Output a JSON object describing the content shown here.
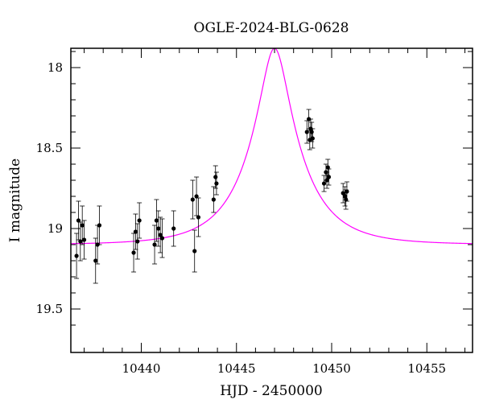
{
  "chart_data": {
    "type": "scatter",
    "title": "OGLE-2024-BLG-0628",
    "xlabel": "HJD - 2450000",
    "ylabel": "I magnitude",
    "xlim": [
      10436.3,
      10457.4
    ],
    "ylim": [
      19.77,
      17.88
    ],
    "y_inverted": true,
    "grid": false,
    "legend": "none",
    "x_ticks": [
      10440,
      10445,
      10450,
      10455
    ],
    "y_ticks": [
      18,
      18.5,
      19,
      19.5
    ],
    "x_tick_labels": [
      "10440",
      "10445",
      "10450",
      "10455"
    ],
    "y_tick_labels": [
      "18",
      "18.5",
      "19",
      "19.5"
    ],
    "colors": {
      "data": "#000000",
      "model": "#ff00ff",
      "axes": "#000000"
    },
    "series": [
      {
        "kind": "points_with_errorbars",
        "x": [
          10436.6,
          10436.7,
          10436.8,
          10436.9,
          10437.0,
          10437.6,
          10437.7,
          10437.8,
          10439.6,
          10439.7,
          10439.8,
          10439.9,
          10440.7,
          10440.8,
          10440.9,
          10441.0,
          10441.1,
          10441.7,
          10442.7,
          10442.8,
          10442.9,
          10443.0,
          10443.8,
          10443.9,
          10443.95,
          10448.7,
          10448.8,
          10448.85,
          10448.9,
          10448.95,
          10449.0,
          10449.6,
          10449.7,
          10449.75,
          10449.8,
          10449.85,
          10450.6,
          10450.7,
          10450.75,
          10450.8
        ],
        "y": [
          19.17,
          18.95,
          19.08,
          18.98,
          19.07,
          19.2,
          19.1,
          18.98,
          19.15,
          19.02,
          19.08,
          18.95,
          19.1,
          18.95,
          19.0,
          19.04,
          19.06,
          19.0,
          18.82,
          19.14,
          18.8,
          18.93,
          18.82,
          18.68,
          18.72,
          18.4,
          18.32,
          18.45,
          18.38,
          18.4,
          18.44,
          18.72,
          18.65,
          18.7,
          18.62,
          18.68,
          18.78,
          18.8,
          18.82,
          18.77
        ],
        "yerr": [
          0.14,
          0.12,
          0.12,
          0.12,
          0.12,
          0.14,
          0.12,
          0.12,
          0.12,
          0.11,
          0.11,
          0.11,
          0.12,
          0.13,
          0.11,
          0.11,
          0.12,
          0.11,
          0.12,
          0.13,
          0.12,
          0.12,
          0.08,
          0.07,
          0.07,
          0.07,
          0.06,
          0.06,
          0.06,
          0.06,
          0.06,
          0.05,
          0.05,
          0.05,
          0.05,
          0.05,
          0.06,
          0.06,
          0.06,
          0.06
        ]
      },
      {
        "kind": "model_curve",
        "model": "point-lens",
        "t0": 10447.0,
        "tE": 2.75,
        "u0": 0.25,
        "baseline_mag": 19.1,
        "peak_mag": 17.88
      }
    ]
  }
}
